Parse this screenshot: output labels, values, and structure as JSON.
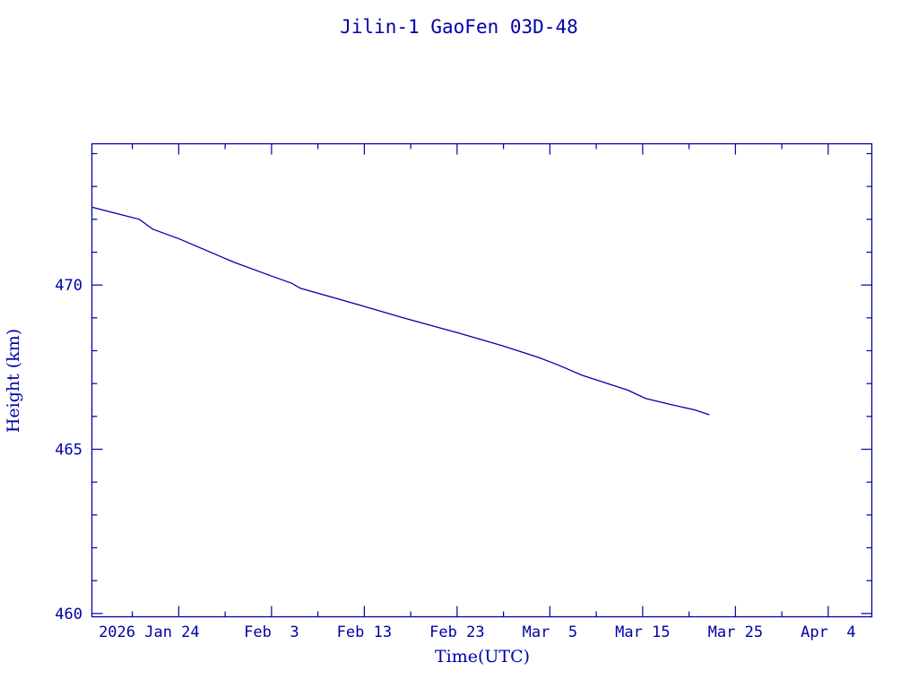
{
  "chart_data": {
    "type": "line",
    "title": "Jilin-1 GaoFen 03D-48",
    "xlabel": "Time(UTC)",
    "ylabel": "Height (km)",
    "x_units": "day of year 2026 (Jan 1 = 0)",
    "xlim": [
      13.64,
      97.7
    ],
    "ylim": [
      459.9,
      474.3
    ],
    "x_ticks": [
      {
        "value": 23,
        "label": "2026 Jan 24"
      },
      {
        "value": 33,
        "label": "Feb  3"
      },
      {
        "value": 43,
        "label": "Feb 13"
      },
      {
        "value": 53,
        "label": "Feb 23"
      },
      {
        "value": 63,
        "label": "Mar  5"
      },
      {
        "value": 73,
        "label": "Mar 15"
      },
      {
        "value": 83,
        "label": "Mar 25"
      },
      {
        "value": 93,
        "label": "Apr  4"
      }
    ],
    "x_minor_ticks": [
      18,
      28,
      38,
      48,
      58,
      68,
      78,
      88
    ],
    "y_ticks": [
      {
        "value": 460,
        "label": "460"
      },
      {
        "value": 465,
        "label": "465"
      },
      {
        "value": 470,
        "label": "470"
      }
    ],
    "y_minor_ticks": [
      461,
      462,
      463,
      464,
      466,
      467,
      468,
      469,
      471,
      472,
      473,
      474
    ],
    "grid": false,
    "series": [
      {
        "name": "Height",
        "color": "#0000a8",
        "x": [
          13.64,
          18.75,
          20.2,
          23.1,
          28.9,
          32.75,
          35.2,
          36.1,
          42.4,
          47.2,
          53.0,
          57.9,
          61.7,
          63.6,
          66.5,
          71.4,
          73.3,
          76.2,
          78.6,
          80.2
        ],
        "y": [
          472.37,
          472.0,
          471.7,
          471.4,
          470.7,
          470.3,
          470.05,
          469.9,
          469.4,
          469.0,
          468.55,
          468.15,
          467.8,
          467.6,
          467.25,
          466.8,
          466.55,
          466.35,
          466.2,
          466.05
        ]
      }
    ]
  }
}
